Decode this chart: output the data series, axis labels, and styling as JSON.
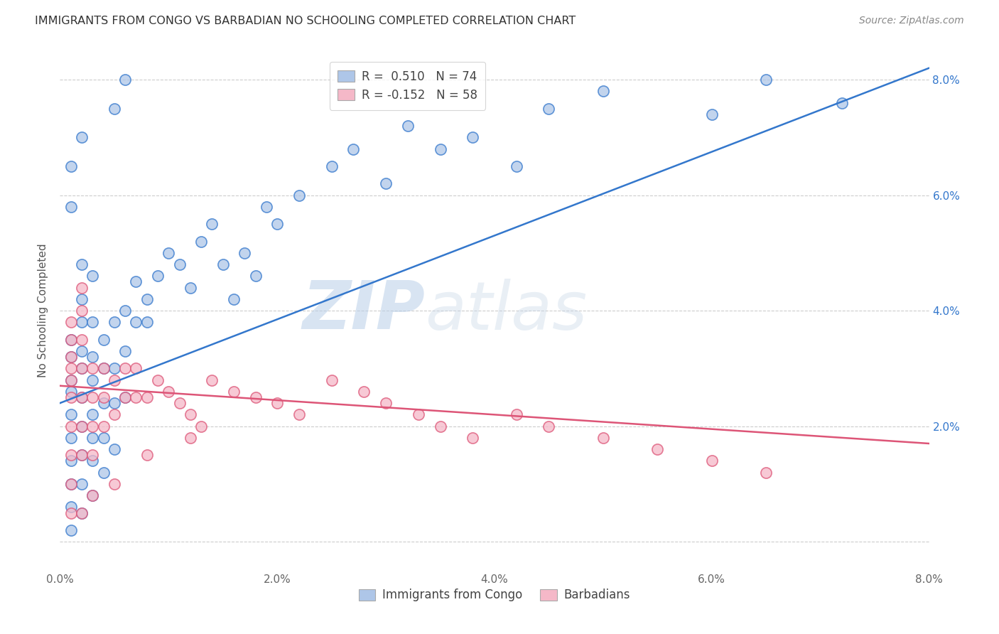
{
  "title": "IMMIGRANTS FROM CONGO VS BARBADIAN NO SCHOOLING COMPLETED CORRELATION CHART",
  "source": "Source: ZipAtlas.com",
  "ylabel": "No Schooling Completed",
  "xlim": [
    0.0,
    0.08
  ],
  "ylim": [
    -0.005,
    0.085
  ],
  "x_ticks": [
    0.0,
    0.02,
    0.04,
    0.06,
    0.08
  ],
  "y_ticks": [
    0.0,
    0.02,
    0.04,
    0.06,
    0.08
  ],
  "x_tick_labels": [
    "0.0%",
    "2.0%",
    "4.0%",
    "6.0%",
    "8.0%"
  ],
  "y_tick_labels_right": [
    "",
    "2.0%",
    "4.0%",
    "6.0%",
    "8.0%"
  ],
  "legend_label1": "Immigrants from Congo",
  "legend_label2": "Barbadians",
  "R1": 0.51,
  "N1": 74,
  "R2": -0.152,
  "N2": 58,
  "color_congo": "#aec6e8",
  "color_barbadian": "#f5b8c8",
  "line_color_congo": "#3377cc",
  "line_color_barbadian": "#dd5577",
  "watermark_zip": "ZIP",
  "watermark_atlas": "atlas",
  "background_color": "#ffffff",
  "grid_color": "#cccccc",
  "congo_line_x": [
    0.0,
    0.08
  ],
  "congo_line_y": [
    0.024,
    0.082
  ],
  "barb_line_x": [
    0.0,
    0.08
  ],
  "barb_line_y": [
    0.027,
    0.017
  ],
  "congo_x": [
    0.001,
    0.001,
    0.001,
    0.001,
    0.001,
    0.001,
    0.001,
    0.001,
    0.001,
    0.001,
    0.002,
    0.002,
    0.002,
    0.002,
    0.002,
    0.002,
    0.002,
    0.002,
    0.002,
    0.002,
    0.003,
    0.003,
    0.003,
    0.003,
    0.003,
    0.003,
    0.003,
    0.004,
    0.004,
    0.004,
    0.004,
    0.004,
    0.005,
    0.005,
    0.005,
    0.005,
    0.006,
    0.006,
    0.006,
    0.007,
    0.007,
    0.008,
    0.009,
    0.01,
    0.011,
    0.012,
    0.013,
    0.014,
    0.015,
    0.016,
    0.017,
    0.018,
    0.019,
    0.02,
    0.022,
    0.025,
    0.027,
    0.03,
    0.032,
    0.035,
    0.038,
    0.042,
    0.045,
    0.05,
    0.06,
    0.065,
    0.072,
    0.008,
    0.003,
    0.002,
    0.001,
    0.001,
    0.005,
    0.006
  ],
  "congo_y": [
    0.026,
    0.022,
    0.018,
    0.014,
    0.01,
    0.006,
    0.002,
    0.028,
    0.032,
    0.035,
    0.03,
    0.025,
    0.02,
    0.015,
    0.01,
    0.005,
    0.038,
    0.033,
    0.042,
    0.048,
    0.028,
    0.022,
    0.018,
    0.014,
    0.008,
    0.038,
    0.032,
    0.035,
    0.03,
    0.024,
    0.018,
    0.012,
    0.038,
    0.03,
    0.024,
    0.016,
    0.04,
    0.033,
    0.025,
    0.045,
    0.038,
    0.042,
    0.046,
    0.05,
    0.048,
    0.044,
    0.052,
    0.055,
    0.048,
    0.042,
    0.05,
    0.046,
    0.058,
    0.055,
    0.06,
    0.065,
    0.068,
    0.062,
    0.072,
    0.068,
    0.07,
    0.065,
    0.075,
    0.078,
    0.074,
    0.08,
    0.076,
    0.038,
    0.046,
    0.07,
    0.058,
    0.065,
    0.075,
    0.08
  ],
  "barb_x": [
    0.001,
    0.001,
    0.001,
    0.001,
    0.001,
    0.001,
    0.001,
    0.001,
    0.001,
    0.001,
    0.002,
    0.002,
    0.002,
    0.002,
    0.002,
    0.002,
    0.002,
    0.003,
    0.003,
    0.003,
    0.003,
    0.004,
    0.004,
    0.004,
    0.005,
    0.005,
    0.006,
    0.006,
    0.007,
    0.007,
    0.008,
    0.009,
    0.01,
    0.011,
    0.012,
    0.013,
    0.014,
    0.016,
    0.018,
    0.02,
    0.022,
    0.025,
    0.028,
    0.03,
    0.033,
    0.035,
    0.038,
    0.042,
    0.045,
    0.05,
    0.055,
    0.06,
    0.003,
    0.002,
    0.005,
    0.008,
    0.065,
    0.012
  ],
  "barb_y": [
    0.03,
    0.025,
    0.02,
    0.015,
    0.01,
    0.005,
    0.035,
    0.038,
    0.032,
    0.028,
    0.025,
    0.02,
    0.015,
    0.03,
    0.035,
    0.04,
    0.044,
    0.03,
    0.025,
    0.02,
    0.015,
    0.03,
    0.025,
    0.02,
    0.028,
    0.022,
    0.03,
    0.025,
    0.03,
    0.025,
    0.025,
    0.028,
    0.026,
    0.024,
    0.022,
    0.02,
    0.028,
    0.026,
    0.025,
    0.024,
    0.022,
    0.028,
    0.026,
    0.024,
    0.022,
    0.02,
    0.018,
    0.022,
    0.02,
    0.018,
    0.016,
    0.014,
    0.008,
    0.005,
    0.01,
    0.015,
    0.012,
    0.018
  ]
}
